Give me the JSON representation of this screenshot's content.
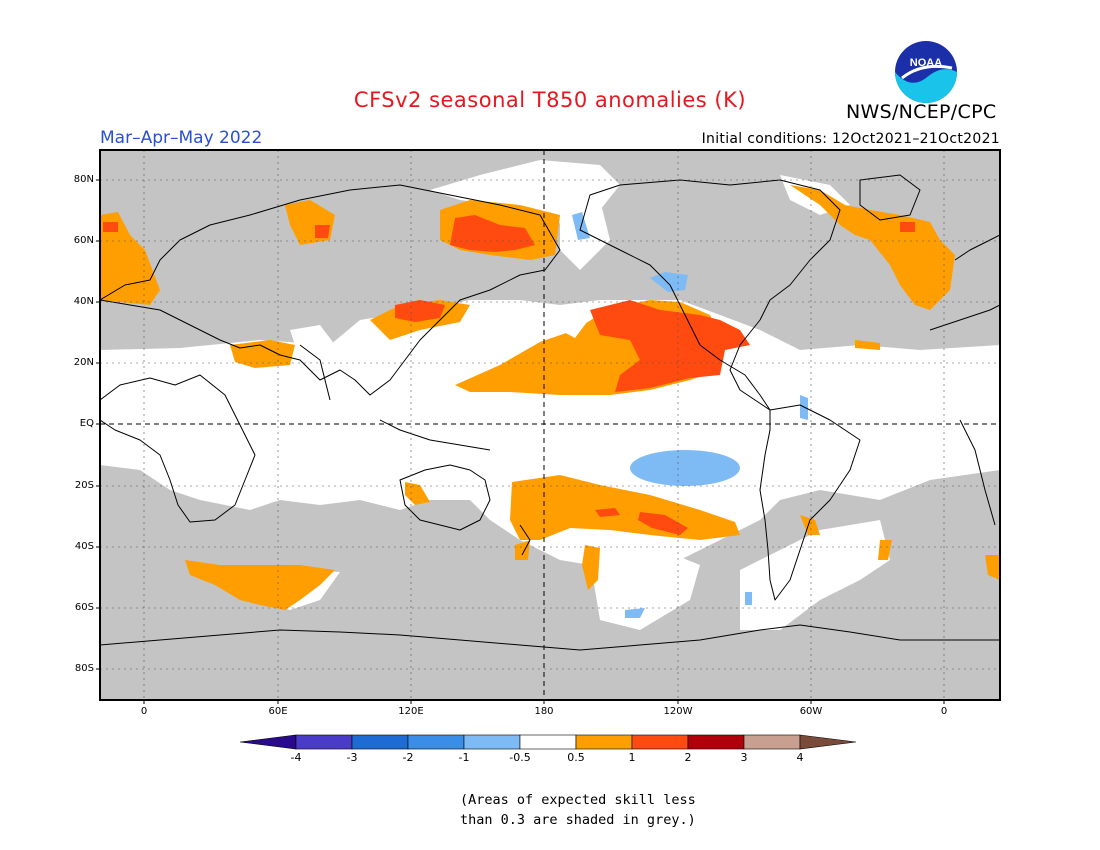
{
  "title": "CFSv2 seasonal T850 anomalies (K)",
  "season": "Mar–Apr–May 2022",
  "initial_conditions": "Initial conditions: 12Oct2021–21Oct2021",
  "agency": "NWS/NCEP/CPC",
  "logo_text": "NOAA",
  "lat_labels": [
    "80N",
    "60N",
    "40N",
    "20N",
    "EQ",
    "20S",
    "40S",
    "60S",
    "80S"
  ],
  "lon_labels": [
    "0",
    "60E",
    "120E",
    "180",
    "120W",
    "60W",
    "0"
  ],
  "colorbar": {
    "colors": [
      "#2a0a8c",
      "#4a3cc9",
      "#1e6bd6",
      "#3a8ee8",
      "#7ebbf5",
      "#ffffff",
      "#ff9e00",
      "#ff4a10",
      "#b0000c",
      "#c9a090",
      "#7a4a3a"
    ],
    "tick_labels": [
      "-4",
      "-3",
      "-2",
      "-1",
      "-0.5",
      "0.5",
      "1",
      "2",
      "3",
      "4"
    ]
  },
  "footnote": [
    "(Areas of expected skill less",
    "than 0.3 are shaded in grey.)"
  ],
  "colors": {
    "title": "#e8161e",
    "season": "#2a4fd6",
    "low_skill_grey": "#c4c4c4",
    "anomaly_orange": "#ff9e00",
    "anomaly_red": "#ff4a10",
    "anomaly_darkred": "#d41e1e",
    "anomaly_blue": "#7ebbf5"
  }
}
